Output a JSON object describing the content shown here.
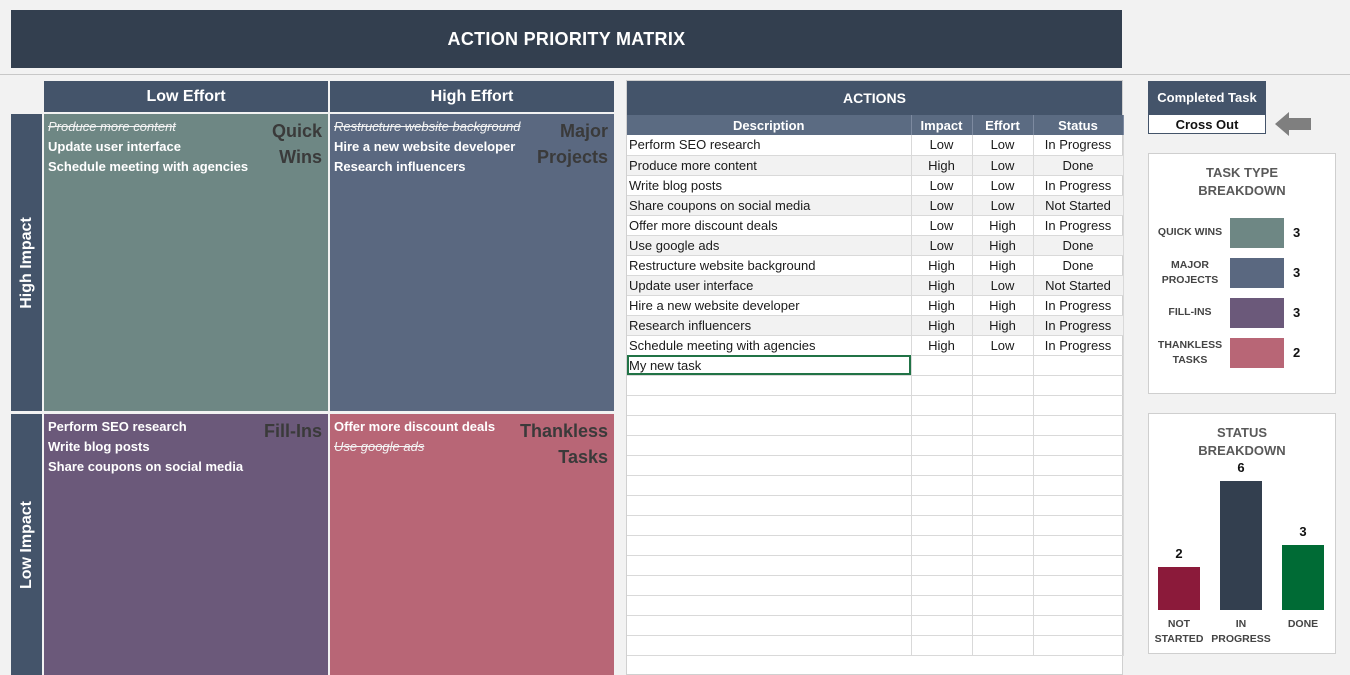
{
  "title": "ACTION PRIORITY MATRIX",
  "matrix": {
    "col_low_effort": "Low Effort",
    "col_high_effort": "High Effort",
    "row_high_impact": "High Impact",
    "row_low_impact": "Low Impact",
    "quick_wins": {
      "label_line1": "Quick",
      "label_line2": "Wins",
      "color": "#6e8784",
      "tasks": [
        {
          "text": "Produce more content",
          "done": true
        },
        {
          "text": "Update user interface",
          "done": false
        },
        {
          "text": "Schedule meeting with agencies",
          "done": false
        }
      ]
    },
    "major_projects": {
      "label_line1": "Major",
      "label_line2": "Projects",
      "color": "#5a6880",
      "tasks": [
        {
          "text": "Restructure website background",
          "done": true
        },
        {
          "text": "Hire a new website developer",
          "done": false
        },
        {
          "text": "Research influencers",
          "done": false
        }
      ]
    },
    "fill_ins": {
      "label_line1": "Fill-Ins",
      "label_line2": "",
      "color": "#6b597a",
      "tasks": [
        {
          "text": "Perform SEO research",
          "done": false
        },
        {
          "text": "Write blog posts",
          "done": false
        },
        {
          "text": "Share coupons on social media",
          "done": false
        }
      ]
    },
    "thankless_tasks": {
      "label_line1": "Thankless",
      "label_line2": "Tasks",
      "color": "#b86676",
      "tasks": [
        {
          "text": "Offer more discount deals",
          "done": false
        },
        {
          "text": "Use google ads",
          "done": true
        }
      ]
    }
  },
  "actions": {
    "title": "ACTIONS",
    "headers": [
      "Description",
      "Impact",
      "Effort",
      "Status"
    ],
    "rows": [
      [
        "Perform SEO research",
        "Low",
        "Low",
        "In Progress"
      ],
      [
        "Produce more content",
        "High",
        "Low",
        "Done"
      ],
      [
        "Write blog posts",
        "Low",
        "Low",
        "In Progress"
      ],
      [
        "Share coupons on social media",
        "Low",
        "Low",
        "Not Started"
      ],
      [
        "Offer more discount deals",
        "Low",
        "High",
        "In Progress"
      ],
      [
        "Use google ads",
        "Low",
        "High",
        "Done"
      ],
      [
        "Restructure website background",
        "High",
        "High",
        "Done"
      ],
      [
        "Update user interface",
        "High",
        "Low",
        "Not Started"
      ],
      [
        "Hire a new website developer",
        "High",
        "High",
        "In Progress"
      ],
      [
        "Research influencers",
        "High",
        "High",
        "In Progress"
      ],
      [
        "Schedule meeting with agencies",
        "High",
        "Low",
        "In Progress"
      ]
    ],
    "editing_cell_value": "My new task"
  },
  "completed_task": {
    "title": "Completed Task",
    "value": "Cross Out"
  },
  "task_type_breakdown": {
    "title_line1": "TASK TYPE",
    "title_line2": "BREAKDOWN",
    "items": [
      {
        "label_line1": "QUICK WINS",
        "label_line2": "",
        "count": "3",
        "color": "#6e8784"
      },
      {
        "label_line1": "MAJOR",
        "label_line2": "PROJECTS",
        "count": "3",
        "color": "#5a6880"
      },
      {
        "label_line1": "FILL-INS",
        "label_line2": "",
        "count": "3",
        "color": "#6b597a"
      },
      {
        "label_line1": "THANKLESS",
        "label_line2": "TASKS",
        "count": "2",
        "color": "#b86676"
      }
    ]
  },
  "status_breakdown": {
    "title_line1": "STATUS",
    "title_line2": "BREAKDOWN",
    "chart_data": {
      "type": "bar",
      "categories": [
        "NOT STARTED",
        "IN PROGRESS",
        "DONE"
      ],
      "values": [
        2,
        6,
        3
      ],
      "colors": [
        "#8b1a3a",
        "#333f4f",
        "#006b35"
      ],
      "ylim": [
        0,
        6.5
      ],
      "grid": false,
      "legend": "none"
    },
    "cat_lines": [
      [
        "NOT",
        "STARTED"
      ],
      [
        "IN",
        "PROGRESS"
      ],
      [
        "DONE",
        ""
      ]
    ]
  }
}
